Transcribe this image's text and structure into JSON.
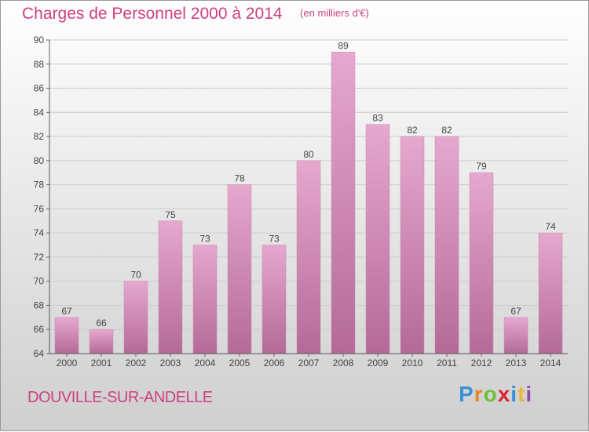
{
  "title": "Charges de Personnel 2000 à 2014",
  "subtitle": "(en milliers d'€)",
  "commune": "DOUVILLE-SUR-ANDELLE",
  "logo": {
    "text": "Proxiti",
    "letter_colors": [
      "#3b8fd4",
      "#e8832a",
      "#6cbf3a",
      "#d8262f",
      "#3b8fd4",
      "#e8b83a",
      "#8b4fb0"
    ]
  },
  "colors": {
    "bar_top": "#e6a8cf",
    "bar_bottom": "#b46a98",
    "accent": "#cf3f80",
    "grid": "#cdcdcd"
  },
  "chart_data": {
    "type": "bar",
    "title": "Charges de Personnel 2000 à 2014",
    "subtitle": "(en milliers d'€)",
    "categories": [
      "2000",
      "2001",
      "2002",
      "2003",
      "2004",
      "2005",
      "2006",
      "2007",
      "2008",
      "2009",
      "2010",
      "2011",
      "2012",
      "2013",
      "2014"
    ],
    "values": [
      67,
      66,
      70,
      75,
      73,
      78,
      73,
      80,
      89,
      83,
      82,
      82,
      79,
      67,
      74
    ],
    "ylim": [
      64,
      90
    ],
    "yticks": [
      64,
      66,
      68,
      70,
      72,
      74,
      76,
      78,
      80,
      82,
      84,
      86,
      88,
      90
    ],
    "grid": true,
    "data_labels": true
  }
}
